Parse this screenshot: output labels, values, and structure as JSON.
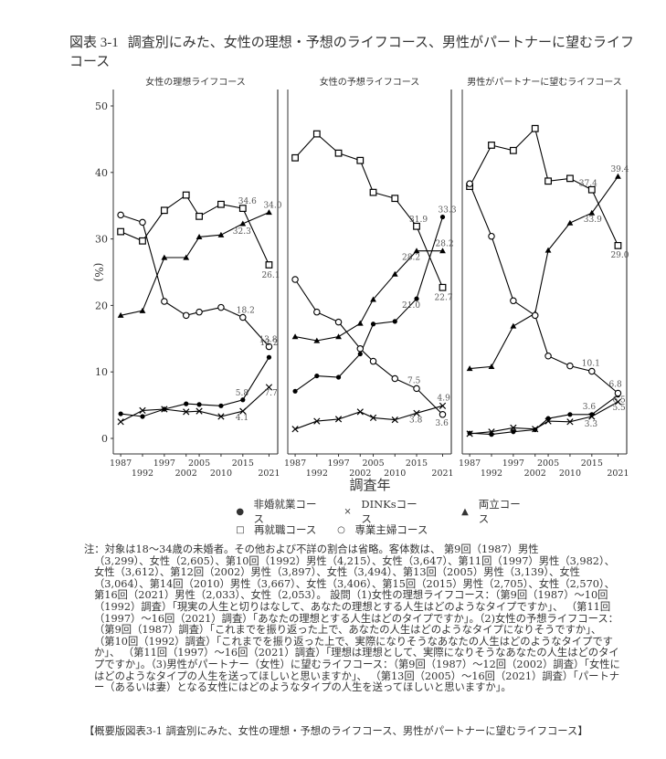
{
  "figure": {
    "number": "図表 3-1",
    "title": "調査別にみた、女性の理想・予想のライフコース、男性がパートナーに望むライフコース"
  },
  "axes": {
    "ylabel": "(%)",
    "xlabel": "調査年",
    "yticks": [
      0,
      10,
      20,
      30,
      40,
      50
    ],
    "xticks_upper": [
      "1987",
      "1997",
      "2005",
      "2015"
    ],
    "xticks_lower": [
      "1992",
      "2002",
      "2010",
      "2021"
    ]
  },
  "legend": {
    "row1": [
      {
        "symbol": "●",
        "label": "非婚就業コース"
      },
      {
        "symbol": "×",
        "label": "DINKsコース"
      },
      {
        "symbol": "▲",
        "label": "両立コース"
      }
    ],
    "row2": [
      {
        "symbol": "□",
        "label": "再就職コース"
      },
      {
        "symbol": "○",
        "label": "専業主婦コース"
      }
    ]
  },
  "chart_data": [
    {
      "type": "line",
      "title": "女性の理想ライフコース",
      "xlabel": "調査年",
      "ylabel": "(%)",
      "ylim": [
        0,
        50
      ],
      "x": [
        1987,
        1992,
        1997,
        2002,
        2005,
        2010,
        2015,
        2021
      ],
      "series": [
        {
          "name": "非婚就業コース",
          "marker": "dot",
          "values": [
            3.7,
            3.3,
            4.4,
            5.2,
            5.1,
            4.9,
            5.8,
            12.2
          ]
        },
        {
          "name": "DINKsコース",
          "marker": "x",
          "values": [
            2.5,
            4.2,
            4.4,
            4.0,
            4.1,
            3.3,
            4.1,
            7.7
          ]
        },
        {
          "name": "両立コース",
          "marker": "triangle",
          "values": [
            18.5,
            19.2,
            27.2,
            27.2,
            30.3,
            30.6,
            32.3,
            34.0
          ]
        },
        {
          "name": "再就職コース",
          "marker": "square",
          "values": [
            31.1,
            29.7,
            34.3,
            36.6,
            33.4,
            35.2,
            34.6,
            26.1
          ]
        },
        {
          "name": "専業主婦コース",
          "marker": "circle",
          "values": [
            33.6,
            32.5,
            20.6,
            18.5,
            19.0,
            19.7,
            18.2,
            13.8
          ]
        }
      ],
      "annotations": [
        "34.6",
        "34.0",
        "32.3",
        "26.1",
        "18.2",
        "13.8",
        "12.2",
        "5.8",
        "7.7",
        "4.1"
      ]
    },
    {
      "type": "line",
      "title": "女性の予想ライフコース",
      "xlabel": "調査年",
      "ylabel": "(%)",
      "ylim": [
        0,
        50
      ],
      "x": [
        1987,
        1992,
        1997,
        2002,
        2005,
        2010,
        2015,
        2021
      ],
      "series": [
        {
          "name": "非婚就業コース",
          "marker": "dot",
          "values": [
            7.1,
            9.4,
            9.2,
            12.7,
            17.2,
            17.6,
            21.0,
            33.3
          ]
        },
        {
          "name": "DINKsコース",
          "marker": "x",
          "values": [
            1.4,
            2.6,
            2.9,
            4.0,
            3.1,
            2.8,
            3.8,
            4.9
          ]
        },
        {
          "name": "両立コース",
          "marker": "triangle",
          "values": [
            15.3,
            14.7,
            15.3,
            17.3,
            20.9,
            24.7,
            28.2,
            28.2
          ]
        },
        {
          "name": "再就職コース",
          "marker": "square",
          "values": [
            42.2,
            45.8,
            42.9,
            41.8,
            37.0,
            36.1,
            31.9,
            22.7
          ]
        },
        {
          "name": "専業主婦コース",
          "marker": "circle",
          "values": [
            23.9,
            19.0,
            17.5,
            13.5,
            11.6,
            9.0,
            7.5,
            3.6
          ]
        }
      ],
      "annotations": [
        "33.3",
        "31.9",
        "28.2",
        "28.2",
        "22.7",
        "21.0",
        "7.5",
        "4.9",
        "3.8",
        "3.6"
      ]
    },
    {
      "type": "line",
      "title": "男性がパートナーに望むライフコース",
      "xlabel": "調査年",
      "ylabel": "(%)",
      "ylim": [
        0,
        50
      ],
      "x": [
        1987,
        1992,
        1997,
        2002,
        2005,
        2010,
        2015,
        2021
      ],
      "series": [
        {
          "name": "非婚就業コース",
          "marker": "dot",
          "values": [
            0.8,
            0.6,
            1.0,
            1.3,
            3.0,
            3.6,
            3.6,
            6.5
          ]
        },
        {
          "name": "DINKsコース",
          "marker": "x",
          "values": [
            0.7,
            1.0,
            1.6,
            1.4,
            2.6,
            2.5,
            3.3,
            5.5
          ]
        },
        {
          "name": "両立コース",
          "marker": "triangle",
          "values": [
            10.5,
            10.8,
            16.9,
            18.8,
            28.3,
            32.4,
            33.9,
            39.4
          ]
        },
        {
          "name": "再就職コース",
          "marker": "square",
          "values": [
            37.9,
            44.1,
            43.3,
            46.6,
            38.7,
            39.1,
            37.4,
            29.0
          ]
        },
        {
          "name": "専業主婦コース",
          "marker": "circle",
          "values": [
            38.3,
            30.4,
            20.7,
            18.5,
            12.4,
            10.9,
            10.1,
            6.8
          ]
        }
      ],
      "annotations": [
        "39.4",
        "37.4",
        "33.9",
        "29.0",
        "10.1",
        "6.8",
        "6.5",
        "5.5",
        "3.6",
        "3.3"
      ]
    }
  ],
  "note": {
    "first_line": "注：対象は18～34歳の未婚者。その他および不詳の割合は省略。客体数は、 第9回（1987）男性",
    "body": "（3,299）、女性（2,605）、第10回（1992）男性（4,215）、女性（3,647）、第11回（1997）男性（3,982）、女性（3,612）、第12回（2002）男性（3,897）、女性（3,494）、第13回（2005）男性（3,139）、女性（3,064）、第14回（2010）男性（3,667）、女性（3,406）、第15回（2015）男性（2,705）、女性（2,570）、第16回（2021）男性（2,033）、女性（2,053）。 設問（1)女性の理想ライフコース：（第9回（1987）～10回（1992）調査）「現実の人生と切りはなして、あなたの理想とする人生はどのようなタイプですか」、 （第11回（1997）～16回（2021）調査）「あなたの理想とする人生はどのタイプですか」。（2)女性の予想ライフコース：（第9回（1987）調査）「これまでを振り返った上で、あなたの人生はどのようなタイプになりそうですか」、 （第10回（1992）調査）「これまでを振り返った上で、実際になりそうなあなたの人生はどのようなタイプですか」、 （第11回（1997）～16回（2021）調査）「理想は理想として、実際になりそうなあなたの人生はどのタイプですか」。（3)男性がパートナー（女性）に望むライフコース：（第9回（1987）～12回（2002）調査）「女性にはどのようなタイプの人生を送ってほしいと思いますか」、 （第13回（2005）～16回（2021）調査）「パートナー（あるいは妻）となる女性にはどのようなタイプの人生を送ってほしいと思いますか」。"
  },
  "footer": "【概要版図表3-1 調査別にみた、女性の理想・予想のライフコース、男性がパートナーに望むライフコース】"
}
